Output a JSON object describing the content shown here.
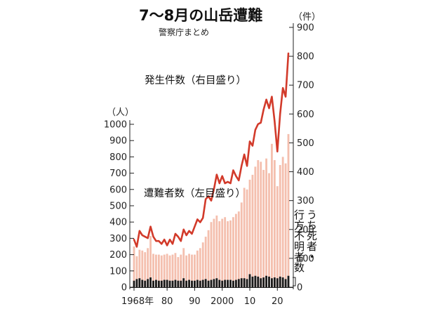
{
  "chart_data": {
    "type": "bar+line",
    "title": "7～8月の山岳遭難",
    "subtitle": "警察庁まとめ",
    "left_axis": {
      "unit": "（人）",
      "ticks": [
        0,
        100,
        200,
        300,
        400,
        500,
        600,
        700,
        800,
        900,
        1000
      ],
      "ylim": [
        0,
        1000
      ]
    },
    "right_axis": {
      "unit": "（件）",
      "ticks": [
        0,
        100,
        200,
        300,
        400,
        500,
        600,
        700,
        800,
        900
      ],
      "ylim": [
        0,
        900
      ]
    },
    "x_ticks": [
      {
        "year": 1968,
        "label": "1968年"
      },
      {
        "year": 1980,
        "label": "80"
      },
      {
        "year": 1990,
        "label": "90"
      },
      {
        "year": 2000,
        "label": "2000"
      },
      {
        "year": 2010,
        "label": "10"
      },
      {
        "year": 2020,
        "label": "20"
      }
    ],
    "years": [
      1968,
      1969,
      1970,
      1971,
      1972,
      1973,
      1974,
      1975,
      1976,
      1977,
      1978,
      1979,
      1980,
      1981,
      1982,
      1983,
      1984,
      1985,
      1986,
      1987,
      1988,
      1989,
      1990,
      1991,
      1992,
      1993,
      1994,
      1995,
      1996,
      1997,
      1998,
      1999,
      2000,
      2001,
      2002,
      2003,
      2004,
      2005,
      2006,
      2007,
      2008,
      2009,
      2010,
      2011,
      2012,
      2013,
      2014,
      2015,
      2016,
      2017,
      2018,
      2019,
      2020,
      2021,
      2022,
      2023,
      2024
    ],
    "series": [
      {
        "name": "遭難者数（左目盛り）",
        "type": "bar",
        "axis": "left",
        "color": "#f4bfae",
        "values": [
          250,
          190,
          230,
          225,
          215,
          240,
          315,
          205,
          200,
          200,
          195,
          200,
          205,
          195,
          200,
          210,
          185,
          200,
          240,
          195,
          205,
          200,
          200,
          225,
          240,
          275,
          310,
          350,
          400,
          420,
          440,
          405,
          420,
          430,
          405,
          410,
          430,
          450,
          465,
          520,
          610,
          600,
          660,
          690,
          740,
          780,
          770,
          720,
          790,
          700,
          880,
          780,
          620,
          750,
          800,
          760,
          940
        ]
      },
      {
        "name": "うち死者・行方不明者数",
        "type": "bar",
        "axis": "left",
        "color": "#1a1a1a",
        "values": [
          40,
          50,
          55,
          45,
          40,
          50,
          60,
          40,
          45,
          40,
          40,
          45,
          45,
          40,
          40,
          45,
          40,
          40,
          55,
          40,
          45,
          40,
          40,
          45,
          40,
          45,
          50,
          40,
          45,
          50,
          55,
          45,
          40,
          45,
          45,
          45,
          40,
          45,
          50,
          55,
          55,
          50,
          80,
          65,
          70,
          65,
          55,
          60,
          70,
          65,
          55,
          60,
          55,
          65,
          60,
          50,
          70
        ]
      },
      {
        "name": "発生件数（右目盛り）",
        "type": "line",
        "axis": "right",
        "color": "#d23a2a",
        "values": [
          165,
          140,
          195,
          180,
          175,
          170,
          210,
          175,
          160,
          160,
          150,
          165,
          145,
          165,
          150,
          185,
          175,
          160,
          200,
          180,
          195,
          185,
          210,
          235,
          225,
          240,
          305,
          315,
          300,
          340,
          390,
          360,
          385,
          360,
          365,
          360,
          405,
          385,
          370,
          420,
          460,
          420,
          505,
          490,
          545,
          565,
          570,
          615,
          650,
          620,
          660,
          575,
          470,
          600,
          690,
          660,
          810
        ]
      }
    ],
    "annotations": {
      "line_label": "発生件数（右目盛り）",
      "bar_label": "遭難者数（左目盛り）",
      "vertical_label_1": "うち死者・",
      "vertical_label_2": "行方不明者数"
    },
    "colors": {
      "total_bar": "#f4bfae",
      "fatal_bar": "#1a1a1a",
      "line": "#d23a2a"
    }
  }
}
